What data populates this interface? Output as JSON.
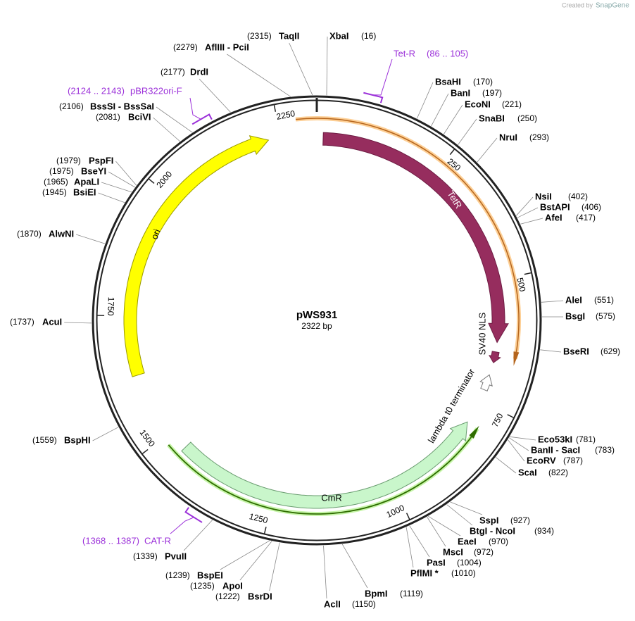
{
  "credit": {
    "prefix": "Created by",
    "brand": "SnapGene"
  },
  "plasmid": {
    "name": "pWS931",
    "size": "2322 bp"
  },
  "ticks": [
    250,
    500,
    750,
    1000,
    1250,
    1500,
    1750,
    2000,
    2250
  ],
  "features": [
    {
      "label": "TetR"
    },
    {
      "label": "SV40 NLS"
    },
    {
      "label": "lambda t0 terminator"
    },
    {
      "label": "CmR"
    },
    {
      "label": "ori"
    }
  ],
  "primers": [
    {
      "name": "Tet-R",
      "range": "(86 .. 105)"
    },
    {
      "name": "pBR322ori-F",
      "range": "(2124 .. 2143)"
    },
    {
      "name": "CAT-R",
      "range": "(1368 .. 1387)"
    }
  ],
  "sites": [
    {
      "name": "XbaI",
      "pos": "(16)"
    },
    {
      "name": "TaqII",
      "pos": "(2315)"
    },
    {
      "name": "AflIII - PciI",
      "pos": "(2279)"
    },
    {
      "name": "DrdI",
      "pos": "(2177)"
    },
    {
      "name": "BssSI - BssSaI",
      "pos": "(2106)"
    },
    {
      "name": "BciVI",
      "pos": "(2081)"
    },
    {
      "name": "PspFI",
      "pos": "(1979)"
    },
    {
      "name": "BseYI",
      "pos": "(1975)"
    },
    {
      "name": "ApaLI",
      "pos": "(1965)"
    },
    {
      "name": "BsiEI",
      "pos": "(1945)"
    },
    {
      "name": "AlwNI",
      "pos": "(1870)"
    },
    {
      "name": "AcuI",
      "pos": "(1737)"
    },
    {
      "name": "BspHI",
      "pos": "(1559)"
    },
    {
      "name": "PvuII",
      "pos": "(1339)"
    },
    {
      "name": "BspEI",
      "pos": "(1239)"
    },
    {
      "name": "ApoI",
      "pos": "(1235)"
    },
    {
      "name": "BsrDI",
      "pos": "(1222)"
    },
    {
      "name": "AclI",
      "pos": "(1150)"
    },
    {
      "name": "BpmI",
      "pos": "(1119)"
    },
    {
      "name": "PflMI *",
      "pos": "(1010)"
    },
    {
      "name": "PasI",
      "pos": "(1004)"
    },
    {
      "name": "MscI",
      "pos": "(972)"
    },
    {
      "name": "EaeI",
      "pos": "(970)"
    },
    {
      "name": "BtgI - NcoI",
      "pos": "(934)"
    },
    {
      "name": "SspI",
      "pos": "(927)"
    },
    {
      "name": "ScaI",
      "pos": "(822)"
    },
    {
      "name": "EcoRV",
      "pos": "(787)"
    },
    {
      "name": "BanII - SacI",
      "pos": "(783)"
    },
    {
      "name": "Eco53kI",
      "pos": "(781)"
    },
    {
      "name": "BseRI",
      "pos": "(629)"
    },
    {
      "name": "BsgI",
      "pos": "(575)"
    },
    {
      "name": "AleI",
      "pos": "(551)"
    },
    {
      "name": "AfeI",
      "pos": "(417)"
    },
    {
      "name": "BstAPI",
      "pos": "(406)"
    },
    {
      "name": "NsiI",
      "pos": "(402)"
    },
    {
      "name": "NruI",
      "pos": "(293)"
    },
    {
      "name": "SnaBI",
      "pos": "(250)"
    },
    {
      "name": "EcoNI",
      "pos": "(221)"
    },
    {
      "name": "BanI",
      "pos": "(197)"
    },
    {
      "name": "BsaHI",
      "pos": "(170)"
    }
  ]
}
